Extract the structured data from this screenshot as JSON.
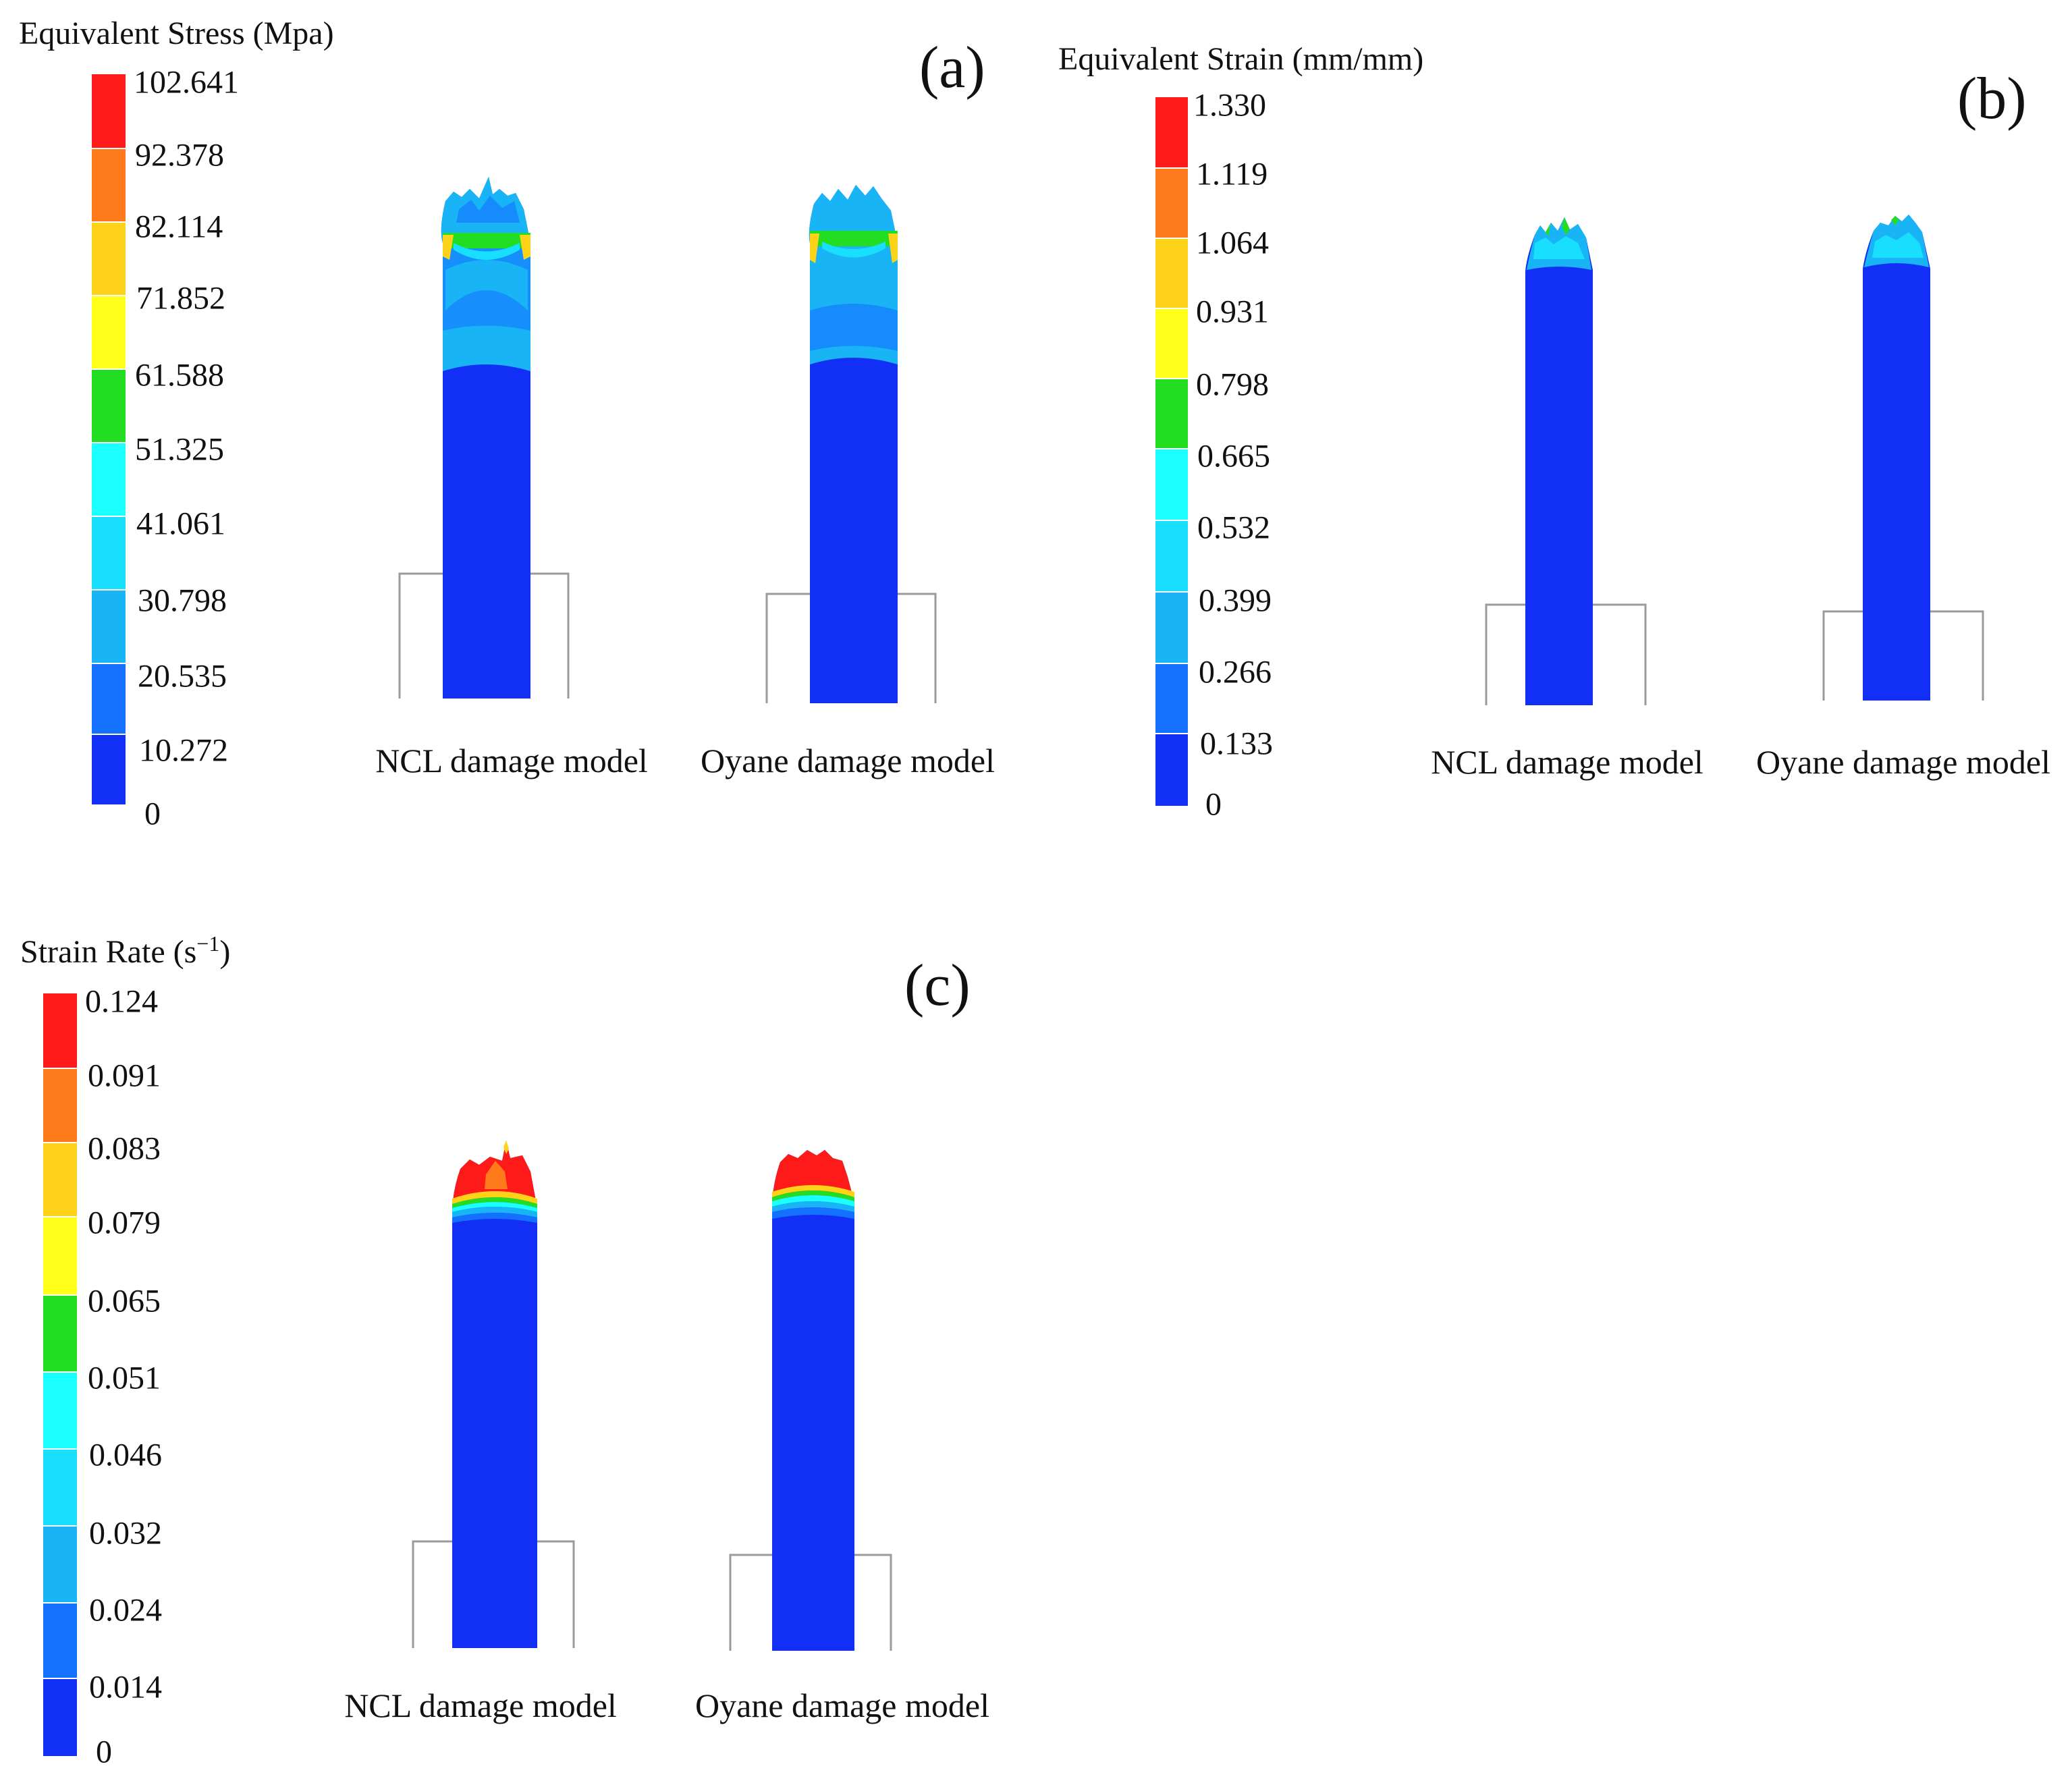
{
  "panels": [
    {
      "label": "(a)",
      "legend_title": "Equivalent Stress (Mpa)",
      "ticks": [
        "102.641",
        "92.378",
        "82.114",
        "71.852",
        "61.588",
        "51.325",
        "41.061",
        "30.798",
        "20.535",
        "10.272",
        "0"
      ],
      "models": [
        "NCL damage model",
        "Oyane damage model"
      ]
    },
    {
      "label": "(b)",
      "legend_title": "Equivalent Strain (mm/mm)",
      "ticks": [
        "1.330",
        "1.119",
        "1.064",
        "0.931",
        "0.798",
        "0.665",
        "0.532",
        "0.399",
        "0.266",
        "0.133",
        "0"
      ],
      "models": [
        "NCL damage model",
        "Oyane damage model"
      ]
    },
    {
      "label": "(c)",
      "legend_title_main": "Strain Rate (s",
      "legend_title_sup": "−1",
      "legend_title_end": ")",
      "ticks": [
        "0.124",
        "0.091",
        "0.083",
        "0.079",
        "0.065",
        "0.051",
        "0.046",
        "0.032",
        "0.024",
        "0.014",
        "0"
      ],
      "models": [
        "NCL damage model",
        "Oyane damage model"
      ]
    }
  ],
  "colors": {
    "bands": [
      "#ff1a1a",
      "#ff7a1a",
      "#ffd21a",
      "#ffff1a",
      "#22dd22",
      "#1affff",
      "#19dfff",
      "#19b4f5",
      "#1470ff",
      "#1230f5"
    ],
    "outline": "#9a9a9a"
  }
}
